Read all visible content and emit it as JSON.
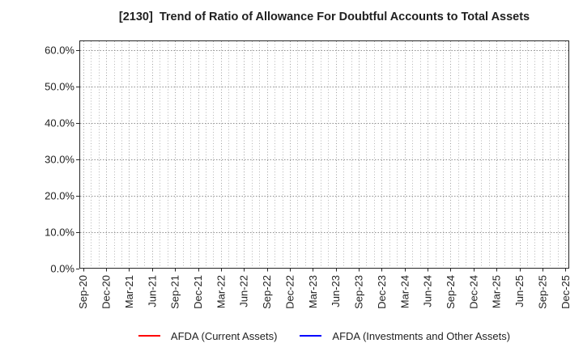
{
  "chart_data": {
    "type": "line",
    "title": "[2130]  Trend of Ratio of Allowance For Doubtful Accounts to Total Assets",
    "categories": [
      "Sep-20",
      "Dec-20",
      "Mar-21",
      "Jun-21",
      "Sep-21",
      "Dec-21",
      "Mar-22",
      "Jun-22",
      "Sep-22",
      "Dec-22",
      "Mar-23",
      "Jun-23",
      "Sep-23",
      "Dec-23",
      "Mar-24",
      "Jun-24",
      "Sep-24",
      "Dec-24",
      "Mar-25",
      "Jun-25",
      "Sep-25",
      "Dec-25"
    ],
    "series": [
      {
        "name": "AFDA (Current Assets)",
        "color": "#ff0000",
        "values": []
      },
      {
        "name": "AFDA (Investments and Other Assets)",
        "color": "#0000ff",
        "values": []
      }
    ],
    "xlabel": "",
    "ylabel": "",
    "y_ticks": [
      0,
      10,
      20,
      30,
      40,
      50,
      60
    ],
    "y_tick_labels": [
      "0.0%",
      "10.0%",
      "20.0%",
      "30.0%",
      "40.0%",
      "50.0%",
      "60.0%"
    ],
    "ylim": [
      0,
      62.7
    ],
    "grid": "on",
    "grid_style": "dotted, horizontal major lines at each 10%, vertical minor lines at each month",
    "legend_position": "lower center"
  },
  "colors": {
    "background": "#ffffff",
    "text": "#1f1f1f",
    "spine": "#262626",
    "grid_horizontal": "#8f8f8f",
    "grid_vertical_quarter": "#9e9e9e",
    "grid_vertical_month": "#b5b5b5",
    "series_red": "#ff0000",
    "series_blue": "#0000ff"
  }
}
